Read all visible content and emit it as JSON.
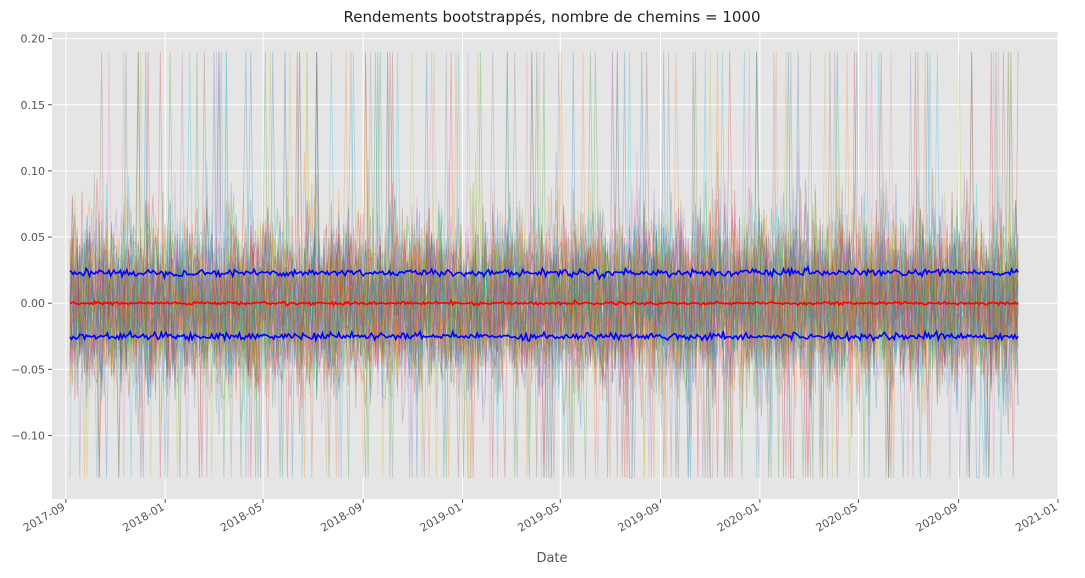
{
  "chart_data": {
    "type": "line",
    "title": "Rendements bootstrappés, nombre de chemins = 1000",
    "xlabel": "Date",
    "ylabel": "",
    "x_start": "2017-09-06",
    "x_end": "2020-11-13",
    "xlim": [
      "2017-08-15",
      "2021-01-01"
    ],
    "ylim": [
      -0.148,
      0.205
    ],
    "x_ticks": [
      "2017-09",
      "2018-01",
      "2018-05",
      "2018-09",
      "2019-01",
      "2019-05",
      "2019-09",
      "2020-01",
      "2020-05",
      "2020-09",
      "2021-01"
    ],
    "y_ticks": [
      -0.1,
      -0.05,
      0.0,
      0.05,
      0.1,
      0.15,
      0.2
    ],
    "y_tick_labels": [
      "−0.10",
      "−0.05",
      "0.00",
      "0.05",
      "0.10",
      "0.15",
      "0.20"
    ],
    "grid": true,
    "legend": "none",
    "series": [
      {
        "role": "paths",
        "count": 1000,
        "min": -0.132,
        "max": 0.19,
        "opacity": 0.3
      },
      {
        "role": "upper-band",
        "color": "#0000ff",
        "value": 0.023
      },
      {
        "role": "mean",
        "color": "#ff0000",
        "value": 0.0
      },
      {
        "role": "lower-band",
        "color": "#0000ff",
        "value": -0.025
      }
    ],
    "path_colors": [
      "#1f77b4",
      "#ff7f0e",
      "#2ca02c",
      "#d62728",
      "#9467bd",
      "#8c564b",
      "#e377c2",
      "#7f7f7f",
      "#bcbd22",
      "#17becf"
    ],
    "background_color": "#e5e5e5",
    "grid_color": "#ffffff"
  }
}
